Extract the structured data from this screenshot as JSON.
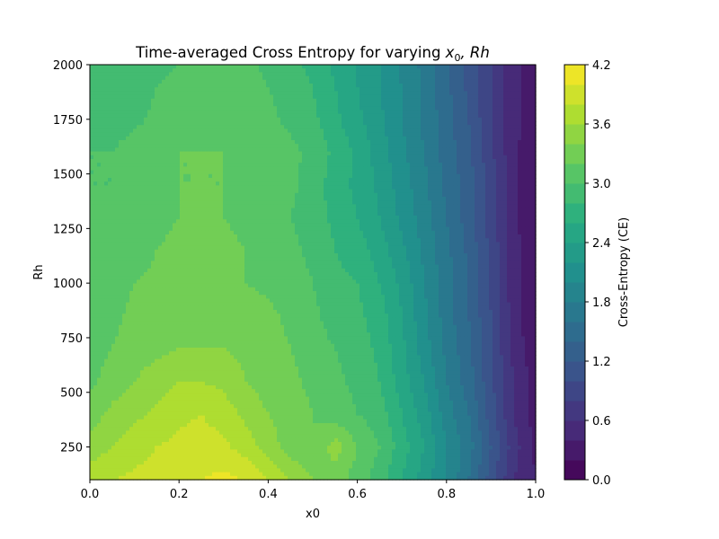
{
  "chart_data": {
    "type": "heatmap",
    "title": "Time-averaged Cross Entropy for varying ",
    "title_math_1": "x",
    "title_math_sub": "0",
    "title_math_2": ", Rh",
    "xlabel": "x0",
    "ylabel": "Rh",
    "xlim": [
      0.0,
      1.0
    ],
    "ylim": [
      100,
      2000
    ],
    "x_ticks": [
      0.0,
      0.2,
      0.4,
      0.6,
      0.8,
      1.0
    ],
    "x_tick_labels": [
      "0.0",
      "0.2",
      "0.4",
      "0.6",
      "0.8",
      "1.0"
    ],
    "y_ticks": [
      250,
      500,
      750,
      1000,
      1250,
      1500,
      1750,
      2000
    ],
    "y_tick_labels": [
      "250",
      "500",
      "750",
      "1000",
      "1250",
      "1500",
      "1750",
      "2000"
    ],
    "grid": false,
    "colormap": "viridis",
    "colorbar": {
      "label": "Cross-Entropy (CE)",
      "range": [
        0.0,
        4.2
      ],
      "levels": 21,
      "ticks": [
        0.0,
        0.6,
        1.2,
        1.8,
        2.4,
        3.0,
        3.6,
        4.2
      ],
      "tick_labels": [
        "0.0",
        "0.6",
        "1.2",
        "1.8",
        "2.4",
        "3.0",
        "3.6",
        "4.2"
      ]
    },
    "x": [
      0.0,
      0.05,
      0.1,
      0.15,
      0.2,
      0.25,
      0.3,
      0.35,
      0.4,
      0.45,
      0.5,
      0.55,
      0.6,
      0.65,
      0.7,
      0.75,
      0.8,
      0.85,
      0.9,
      0.95,
      1.0
    ],
    "y": [
      100,
      250,
      400,
      550,
      700,
      850,
      1000,
      1150,
      1300,
      1450,
      1600,
      1750,
      1900,
      2000
    ],
    "z": [
      [
        3.7,
        3.8,
        3.85,
        3.9,
        3.95,
        4.0,
        4.05,
        4.0,
        3.8,
        3.6,
        3.4,
        3.3,
        3.1,
        2.9,
        2.6,
        2.3,
        2.0,
        1.6,
        1.1,
        0.6,
        0.4
      ],
      [
        3.5,
        3.6,
        3.7,
        3.8,
        3.85,
        3.9,
        3.85,
        3.7,
        3.5,
        3.3,
        3.2,
        3.5,
        3.2,
        3.0,
        2.7,
        2.4,
        2.0,
        1.7,
        1.2,
        0.7,
        0.35
      ],
      [
        3.3,
        3.45,
        3.55,
        3.65,
        3.75,
        3.8,
        3.7,
        3.55,
        3.4,
        3.3,
        3.2,
        3.1,
        3.0,
        2.9,
        2.6,
        2.3,
        1.9,
        1.6,
        1.1,
        0.6,
        0.3
      ],
      [
        3.15,
        3.3,
        3.4,
        3.5,
        3.6,
        3.6,
        3.55,
        3.4,
        3.3,
        3.25,
        3.15,
        3.05,
        2.95,
        2.8,
        2.5,
        2.2,
        1.8,
        1.5,
        1.05,
        0.6,
        0.3
      ],
      [
        3.1,
        3.2,
        3.3,
        3.35,
        3.4,
        3.4,
        3.4,
        3.35,
        3.3,
        3.2,
        3.1,
        3.0,
        2.9,
        2.75,
        2.45,
        2.1,
        1.75,
        1.45,
        1.0,
        0.55,
        0.25
      ],
      [
        3.05,
        3.15,
        3.25,
        3.3,
        3.35,
        3.35,
        3.35,
        3.3,
        3.25,
        3.15,
        3.05,
        2.9,
        2.85,
        2.7,
        2.4,
        2.05,
        1.7,
        1.4,
        1.0,
        0.5,
        0.2
      ],
      [
        3.05,
        3.1,
        3.2,
        3.25,
        3.3,
        3.3,
        3.3,
        3.2,
        3.15,
        3.1,
        3.0,
        2.85,
        2.8,
        2.6,
        2.35,
        2.0,
        1.7,
        1.4,
        0.95,
        0.5,
        0.2
      ],
      [
        3.0,
        3.05,
        3.1,
        3.2,
        3.25,
        3.3,
        3.25,
        3.2,
        3.1,
        3.05,
        2.95,
        2.8,
        2.7,
        2.5,
        2.25,
        1.95,
        1.65,
        1.35,
        0.95,
        0.5,
        0.2
      ],
      [
        3.05,
        3.0,
        3.05,
        3.15,
        3.2,
        3.25,
        3.2,
        3.15,
        3.1,
        3.0,
        2.9,
        2.75,
        2.6,
        2.4,
        2.15,
        1.9,
        1.6,
        1.3,
        0.9,
        0.45,
        0.2
      ],
      [
        3.0,
        3.0,
        3.05,
        3.1,
        3.2,
        3.2,
        3.2,
        3.15,
        3.1,
        3.05,
        2.9,
        2.7,
        2.55,
        2.35,
        2.1,
        1.85,
        1.55,
        1.3,
        0.9,
        0.45,
        0.25
      ],
      [
        3.0,
        3.0,
        3.1,
        3.15,
        3.2,
        3.2,
        3.2,
        3.15,
        3.1,
        3.05,
        2.95,
        2.75,
        2.55,
        2.3,
        2.05,
        1.8,
        1.5,
        1.25,
        0.85,
        0.45,
        0.25
      ],
      [
        2.85,
        2.9,
        2.95,
        3.05,
        3.15,
        3.2,
        3.15,
        3.15,
        3.05,
        2.95,
        2.85,
        2.65,
        2.45,
        2.25,
        2.0,
        1.75,
        1.5,
        1.2,
        0.8,
        0.45,
        0.3
      ],
      [
        2.8,
        2.85,
        2.9,
        3.0,
        3.05,
        3.1,
        3.1,
        3.1,
        3.0,
        2.9,
        2.8,
        2.6,
        2.4,
        2.2,
        2.0,
        1.75,
        1.45,
        1.15,
        0.8,
        0.45,
        0.3
      ],
      [
        2.8,
        2.85,
        2.9,
        2.95,
        3.0,
        3.05,
        3.05,
        3.05,
        2.95,
        2.85,
        2.75,
        2.55,
        2.4,
        2.2,
        1.95,
        1.75,
        1.45,
        1.15,
        0.8,
        0.45,
        0.3
      ]
    ]
  }
}
